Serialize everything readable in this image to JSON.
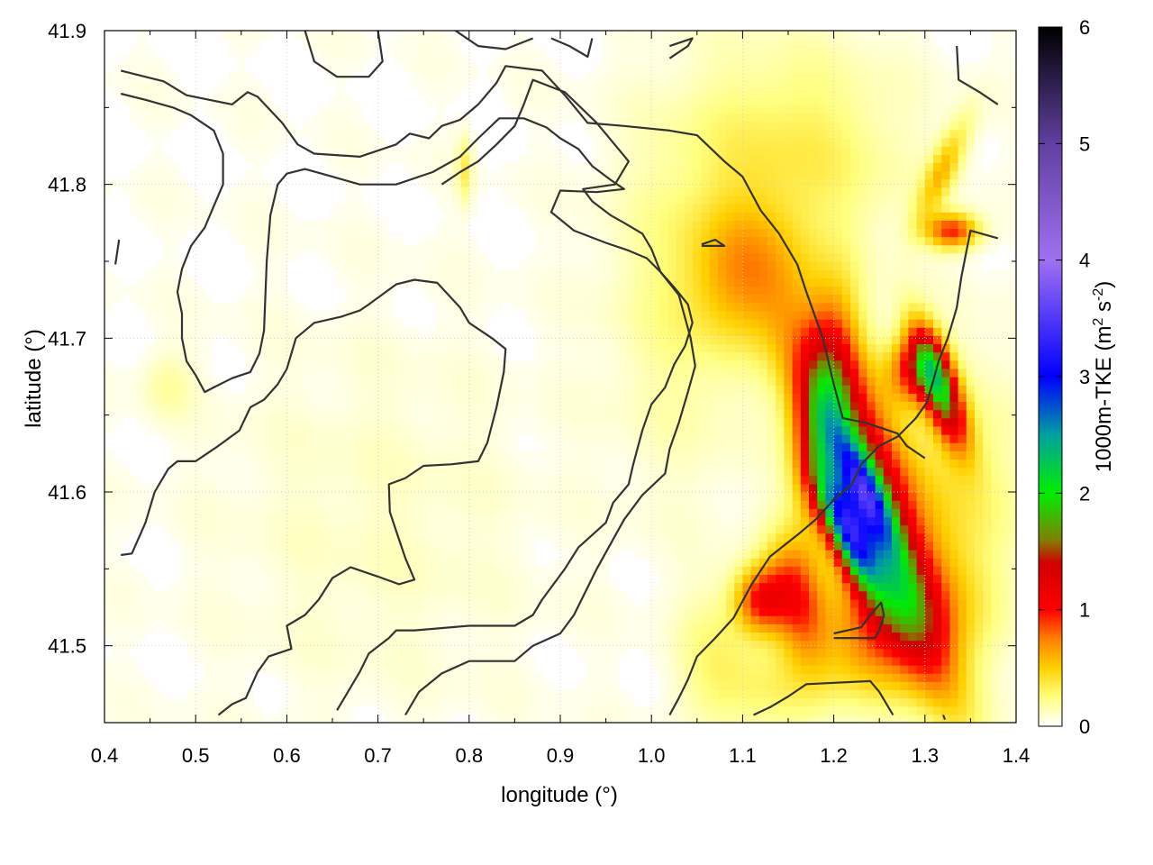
{
  "chart_data": {
    "type": "heatmap",
    "title": "",
    "xlabel": "longitude (°)",
    "ylabel": "latitude (°)",
    "xlim": [
      0.4,
      1.4
    ],
    "ylim": [
      41.45,
      41.9
    ],
    "xticks": [
      "0.4",
      "0.5",
      "0.6",
      "0.7",
      "0.8",
      "0.9",
      "1.0",
      "1.1",
      "1.2",
      "1.3",
      "1.4"
    ],
    "yticks": [
      "41.5",
      "41.6",
      "41.7",
      "41.8",
      "41.9"
    ],
    "grid": true,
    "colorbar": {
      "label_main": "1000m-TKE (m",
      "label_sup1": "2",
      "label_mid": " s",
      "label_sup2": "-2",
      "label_end": ")",
      "range": [
        0,
        6
      ],
      "ticks": [
        "0",
        "1",
        "2",
        "3",
        "4",
        "5",
        "6"
      ],
      "colors": [
        {
          "v": 0.0,
          "c": "#ffffff"
        },
        {
          "v": 0.25,
          "c": "#ffff80"
        },
        {
          "v": 0.5,
          "c": "#ffd000"
        },
        {
          "v": 0.75,
          "c": "#ff8000"
        },
        {
          "v": 1.0,
          "c": "#ff0000"
        },
        {
          "v": 1.4,
          "c": "#d00000"
        },
        {
          "v": 1.6,
          "c": "#808000"
        },
        {
          "v": 2.0,
          "c": "#00ee00"
        },
        {
          "v": 2.5,
          "c": "#00a0a0"
        },
        {
          "v": 3.0,
          "c": "#0000ff"
        },
        {
          "v": 4.0,
          "c": "#a070f0"
        },
        {
          "v": 5.0,
          "c": "#6040a0"
        },
        {
          "v": 6.0,
          "c": "#000000"
        }
      ]
    },
    "features": [
      {
        "lon": 1.23,
        "lat": 41.62,
        "amp": 1.1,
        "sx": 0.03,
        "sy": 0.08,
        "rot": -0.6
      },
      {
        "lon": 1.25,
        "lat": 41.57,
        "amp": 1.0,
        "sx": 0.02,
        "sy": 0.09,
        "rot": -0.65
      },
      {
        "lon": 1.215,
        "lat": 41.575,
        "amp": 2.2,
        "sx": 0.012,
        "sy": 0.03,
        "rot": -0.7
      },
      {
        "lon": 1.235,
        "lat": 41.6,
        "amp": 1.4,
        "sx": 0.01,
        "sy": 0.03,
        "rot": -0.7
      },
      {
        "lon": 1.315,
        "lat": 41.67,
        "amp": 1.7,
        "sx": 0.012,
        "sy": 0.03,
        "rot": -0.6
      },
      {
        "lon": 1.29,
        "lat": 41.68,
        "amp": 0.9,
        "sx": 0.02,
        "sy": 0.015,
        "rot": 0
      },
      {
        "lon": 1.19,
        "lat": 41.65,
        "amp": 0.9,
        "sx": 0.02,
        "sy": 0.05,
        "rot": 0.2
      },
      {
        "lon": 1.12,
        "lat": 41.53,
        "amp": 0.9,
        "sx": 0.02,
        "sy": 0.015,
        "rot": 0
      },
      {
        "lon": 1.16,
        "lat": 41.53,
        "amp": 0.8,
        "sx": 0.02,
        "sy": 0.03,
        "rot": -0.5
      },
      {
        "lon": 1.24,
        "lat": 41.51,
        "amp": 0.6,
        "sx": 0.04,
        "sy": 0.03,
        "rot": 0
      },
      {
        "lon": 1.33,
        "lat": 41.77,
        "amp": 0.9,
        "sx": 0.02,
        "sy": 0.008,
        "rot": 0
      },
      {
        "lon": 1.32,
        "lat": 41.81,
        "amp": 0.5,
        "sx": 0.01,
        "sy": 0.03,
        "rot": 0.7
      },
      {
        "lon": 1.1,
        "lat": 41.74,
        "amp": 0.45,
        "sx": 0.04,
        "sy": 0.03,
        "rot": 0
      },
      {
        "lon": 1.16,
        "lat": 41.82,
        "amp": 0.3,
        "sx": 0.08,
        "sy": 0.05,
        "rot": 0
      },
      {
        "lon": 1.33,
        "lat": 41.6,
        "amp": 0.3,
        "sx": 0.06,
        "sy": 0.06,
        "rot": 0
      },
      {
        "lon": 1.3,
        "lat": 41.52,
        "amp": 0.3,
        "sx": 0.05,
        "sy": 0.03,
        "rot": 0
      },
      {
        "lon": 1.04,
        "lat": 41.73,
        "amp": 0.2,
        "sx": 0.06,
        "sy": 0.08,
        "rot": 0
      },
      {
        "lon": 0.7,
        "lat": 41.58,
        "amp": 0.08,
        "sx": 0.12,
        "sy": 0.08,
        "rot": 0
      },
      {
        "lon": 0.795,
        "lat": 41.81,
        "amp": 0.3,
        "sx": 0.006,
        "sy": 0.015,
        "rot": 0
      },
      {
        "lon": 0.47,
        "lat": 41.67,
        "amp": 0.15,
        "sx": 0.02,
        "sy": 0.015,
        "rot": 0
      },
      {
        "lon": 1.13,
        "lat": 41.47,
        "amp": 0.25,
        "sx": 0.05,
        "sy": 0.02,
        "rot": 0
      },
      {
        "lon": 1.07,
        "lat": 41.5,
        "amp": 0.2,
        "sx": 0.03,
        "sy": 0.03,
        "rot": 0
      }
    ],
    "contours": [
      [
        [
          0.418,
          41.874
        ],
        [
          0.465,
          41.867
        ],
        [
          0.49,
          41.858
        ],
        [
          0.54,
          41.852
        ],
        [
          0.557,
          41.86
        ],
        [
          0.568,
          41.857
        ],
        [
          0.595,
          41.84
        ],
        [
          0.612,
          41.826
        ],
        [
          0.63,
          41.82
        ],
        [
          0.68,
          41.818
        ],
        [
          0.72,
          41.826
        ],
        [
          0.735,
          41.833
        ],
        [
          0.756,
          41.83
        ],
        [
          0.77,
          41.838
        ],
        [
          0.79,
          41.842
        ],
        [
          0.81,
          41.852
        ],
        [
          0.83,
          41.866
        ],
        [
          0.84,
          41.877
        ],
        [
          0.88,
          41.874
        ],
        [
          0.905,
          41.858
        ],
        [
          0.93,
          41.84
        ],
        [
          0.97,
          41.838
        ],
        [
          1.02,
          41.835
        ],
        [
          1.05,
          41.832
        ],
        [
          1.08,
          41.815
        ],
        [
          1.1,
          41.805
        ],
        [
          1.12,
          41.783
        ],
        [
          1.14,
          41.768
        ],
        [
          1.16,
          41.748
        ],
        [
          1.17,
          41.73
        ],
        [
          1.188,
          41.7
        ],
        [
          1.2,
          41.67
        ],
        [
          1.21,
          41.648
        ],
        [
          1.235,
          41.645
        ],
        [
          1.27,
          41.638
        ],
        [
          1.28,
          41.63
        ],
        [
          1.3,
          41.622
        ]
      ],
      [
        [
          0.418,
          41.859
        ],
        [
          0.445,
          41.855
        ],
        [
          0.475,
          41.85
        ],
        [
          0.495,
          41.845
        ],
        [
          0.52,
          41.835
        ],
        [
          0.53,
          41.82
        ],
        [
          0.53,
          41.8
        ],
        [
          0.52,
          41.786
        ],
        [
          0.51,
          41.772
        ],
        [
          0.495,
          41.76
        ],
        [
          0.485,
          41.745
        ],
        [
          0.48,
          41.73
        ],
        [
          0.485,
          41.716
        ],
        [
          0.485,
          41.7
        ],
        [
          0.49,
          41.685
        ],
        [
          0.5,
          41.676
        ],
        [
          0.51,
          41.665
        ],
        [
          0.52,
          41.668
        ],
        [
          0.54,
          41.674
        ],
        [
          0.56,
          41.678
        ],
        [
          0.57,
          41.69
        ],
        [
          0.575,
          41.705
        ],
        [
          0.578,
          41.75
        ],
        [
          0.582,
          41.78
        ],
        [
          0.59,
          41.8
        ],
        [
          0.6,
          41.807
        ],
        [
          0.62,
          41.81
        ],
        [
          0.65,
          41.805
        ],
        [
          0.68,
          41.8
        ],
        [
          0.72,
          41.8
        ],
        [
          0.76,
          41.808
        ],
        [
          0.79,
          41.818
        ],
        [
          0.81,
          41.83
        ],
        [
          0.833,
          41.843
        ],
        [
          0.86,
          41.843
        ],
        [
          0.885,
          41.837
        ],
        [
          0.9,
          41.83
        ],
        [
          0.92,
          41.823
        ],
        [
          0.935,
          41.812
        ],
        [
          0.955,
          41.803
        ],
        [
          0.97,
          41.797
        ],
        [
          0.94,
          41.795
        ],
        [
          0.9,
          41.796
        ],
        [
          0.89,
          41.782
        ],
        [
          0.915,
          41.77
        ],
        [
          0.95,
          41.762
        ],
        [
          0.975,
          41.757
        ],
        [
          0.995,
          41.752
        ],
        [
          1.01,
          41.743
        ],
        [
          1.03,
          41.728
        ],
        [
          1.043,
          41.7
        ],
        [
          1.048,
          41.682
        ],
        [
          1.04,
          41.665
        ],
        [
          1.03,
          41.645
        ],
        [
          1.02,
          41.628
        ],
        [
          1.015,
          41.612
        ],
        [
          0.99,
          41.598
        ],
        [
          0.97,
          41.582
        ],
        [
          0.94,
          41.55
        ],
        [
          0.915,
          41.52
        ],
        [
          0.9,
          41.508
        ],
        [
          0.87,
          41.5
        ],
        [
          0.85,
          41.49
        ],
        [
          0.8,
          41.49
        ],
        [
          0.77,
          41.482
        ],
        [
          0.745,
          41.47
        ],
        [
          0.73,
          41.455
        ]
      ],
      [
        [
          0.416,
          41.764
        ],
        [
          0.412,
          41.748
        ]
      ],
      [
        [
          0.418,
          41.559
        ],
        [
          0.43,
          41.56
        ],
        [
          0.445,
          41.58
        ],
        [
          0.455,
          41.6
        ],
        [
          0.47,
          41.615
        ],
        [
          0.48,
          41.62
        ],
        [
          0.5,
          41.62
        ],
        [
          0.525,
          41.63
        ],
        [
          0.548,
          41.64
        ],
        [
          0.56,
          41.655
        ],
        [
          0.575,
          41.66
        ],
        [
          0.59,
          41.67
        ],
        [
          0.6,
          41.68
        ],
        [
          0.61,
          41.7
        ],
        [
          0.63,
          41.71
        ],
        [
          0.66,
          41.714
        ],
        [
          0.68,
          41.718
        ],
        [
          0.69,
          41.722
        ],
        [
          0.72,
          41.735
        ],
        [
          0.74,
          41.738
        ],
        [
          0.765,
          41.736
        ],
        [
          0.79,
          41.72
        ],
        [
          0.8,
          41.71
        ],
        [
          0.825,
          41.7
        ],
        [
          0.84,
          41.693
        ],
        [
          0.838,
          41.678
        ],
        [
          0.83,
          41.655
        ],
        [
          0.82,
          41.632
        ],
        [
          0.81,
          41.62
        ],
        [
          0.78,
          41.618
        ],
        [
          0.75,
          41.617
        ],
        [
          0.73,
          41.609
        ],
        [
          0.712,
          41.605
        ],
        [
          0.713,
          41.587
        ],
        [
          0.722,
          41.571
        ],
        [
          0.73,
          41.557
        ],
        [
          0.74,
          41.543
        ],
        [
          0.723,
          41.54
        ],
        [
          0.7,
          41.545
        ],
        [
          0.67,
          41.551
        ],
        [
          0.65,
          41.544
        ],
        [
          0.635,
          41.53
        ],
        [
          0.62,
          41.52
        ],
        [
          0.6,
          41.513
        ],
        [
          0.605,
          41.498
        ],
        [
          0.58,
          41.493
        ],
        [
          0.568,
          41.483
        ],
        [
          0.555,
          41.466
        ],
        [
          0.54,
          41.462
        ],
        [
          0.525,
          41.455
        ]
      ],
      [
        [
          0.655,
          41.458
        ],
        [
          0.665,
          41.468
        ],
        [
          0.68,
          41.483
        ],
        [
          0.69,
          41.495
        ],
        [
          0.712,
          41.505
        ],
        [
          0.72,
          41.51
        ],
        [
          0.74,
          41.51
        ],
        [
          0.8,
          41.513
        ],
        [
          0.85,
          41.513
        ],
        [
          0.87,
          41.52
        ],
        [
          0.88,
          41.53
        ],
        [
          0.905,
          41.55
        ],
        [
          0.92,
          41.564
        ],
        [
          0.95,
          41.58
        ],
        [
          0.958,
          41.593
        ],
        [
          0.975,
          41.605
        ],
        [
          0.98,
          41.618
        ],
        [
          0.99,
          41.64
        ],
        [
          1.0,
          41.657
        ],
        [
          1.015,
          41.668
        ],
        [
          1.025,
          41.683
        ],
        [
          1.037,
          41.695
        ],
        [
          1.045,
          41.71
        ],
        [
          1.04,
          41.722
        ],
        [
          1.025,
          41.733
        ],
        [
          1.01,
          41.743
        ],
        [
          1.0,
          41.758
        ],
        [
          0.99,
          41.768
        ],
        [
          0.97,
          41.775
        ],
        [
          0.955,
          41.78
        ],
        [
          0.935,
          41.789
        ],
        [
          0.925,
          41.797
        ],
        [
          0.96,
          41.8
        ],
        [
          0.975,
          41.815
        ],
        [
          0.94,
          41.84
        ],
        [
          0.905,
          41.86
        ],
        [
          0.87,
          41.868
        ],
        [
          0.86,
          41.852
        ],
        [
          0.85,
          41.838
        ],
        [
          0.83,
          41.826
        ],
        [
          0.81,
          41.815
        ],
        [
          0.79,
          41.808
        ],
        [
          0.77,
          41.8
        ]
      ],
      [
        [
          1.02,
          41.455
        ],
        [
          1.03,
          41.466
        ],
        [
          1.04,
          41.478
        ],
        [
          1.05,
          41.493
        ],
        [
          1.07,
          41.505
        ],
        [
          1.09,
          41.518
        ],
        [
          1.11,
          41.54
        ],
        [
          1.13,
          41.558
        ],
        [
          1.16,
          41.572
        ],
        [
          1.18,
          41.582
        ],
        [
          1.2,
          41.595
        ],
        [
          1.22,
          41.605
        ],
        [
          1.23,
          41.618
        ],
        [
          1.25,
          41.63
        ],
        [
          1.27,
          41.636
        ],
        [
          1.29,
          41.648
        ],
        [
          1.302,
          41.658
        ],
        [
          1.308,
          41.67
        ],
        [
          1.315,
          41.685
        ],
        [
          1.325,
          41.7
        ],
        [
          1.33,
          41.71
        ],
        [
          1.335,
          41.72
        ],
        [
          1.34,
          41.74
        ],
        [
          1.35,
          41.77
        ],
        [
          1.38,
          41.765
        ]
      ],
      [
        [
          1.2,
          41.505
        ],
        [
          1.23,
          41.505
        ],
        [
          1.245,
          41.505
        ],
        [
          1.25,
          41.51
        ],
        [
          1.255,
          41.52
        ],
        [
          1.252,
          41.528
        ],
        [
          1.24,
          41.52
        ],
        [
          1.23,
          41.512
        ],
        [
          1.2,
          41.508
        ]
      ],
      [
        [
          1.055,
          41.76
        ],
        [
          1.08,
          41.76
        ],
        [
          1.07,
          41.764
        ],
        [
          1.055,
          41.761
        ]
      ],
      [
        [
          1.112,
          41.455
        ],
        [
          1.13,
          41.46
        ],
        [
          1.15,
          41.467
        ],
        [
          1.17,
          41.475
        ],
        [
          1.24,
          41.477
        ],
        [
          1.25,
          41.47
        ],
        [
          1.265,
          41.455
        ]
      ],
      [
        [
          1.335,
          41.89
        ],
        [
          1.337,
          41.868
        ],
        [
          1.36,
          41.86
        ],
        [
          1.38,
          41.852
        ]
      ],
      [
        [
          0.62,
          41.9
        ],
        [
          0.625,
          41.89
        ],
        [
          0.63,
          41.88
        ],
        [
          0.655,
          41.87
        ],
        [
          0.69,
          41.87
        ],
        [
          0.705,
          41.88
        ],
        [
          0.7,
          41.9
        ]
      ],
      [
        [
          0.785,
          41.9
        ],
        [
          0.81,
          41.89
        ],
        [
          0.84,
          41.888
        ],
        [
          0.87,
          41.895
        ]
      ],
      [
        [
          0.89,
          41.895
        ],
        [
          0.91,
          41.89
        ],
        [
          0.93,
          41.883
        ],
        [
          0.935,
          41.895
        ]
      ],
      [
        [
          1.02,
          41.882
        ],
        [
          1.04,
          41.89
        ],
        [
          1.045,
          41.895
        ],
        [
          1.02,
          41.89
        ]
      ],
      [
        [
          1.322,
          41.452
        ],
        [
          1.32,
          41.455
        ]
      ]
    ]
  }
}
